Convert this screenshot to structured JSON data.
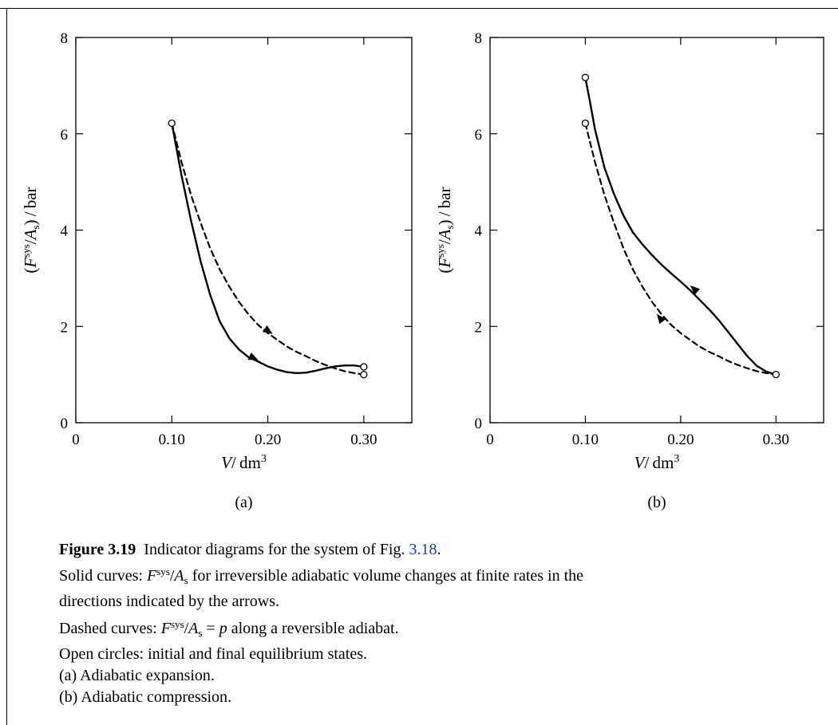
{
  "chart_data": [
    {
      "type": "line",
      "label": "(a)",
      "xlabel_var": "V",
      "xlabel_unit": "dm",
      "xlabel_exp": "3",
      "ylabel_unit": "bar",
      "xlim": [
        0,
        0.35
      ],
      "ylim": [
        0,
        8
      ],
      "xticks": [
        0,
        0.1,
        0.2,
        0.3
      ],
      "xtick_labels": [
        "0",
        "0.10",
        "0.20",
        "0.30"
      ],
      "yticks": [
        0,
        2,
        4,
        6,
        8
      ],
      "ytick_labels": [
        "0",
        "2",
        "4",
        "6",
        "8"
      ],
      "series": [
        {
          "style": "solid",
          "arrows": [
            [
              0.19,
              1.3,
              1
            ]
          ],
          "points": [
            [
              0.1,
              6.22
            ],
            [
              0.11,
              5.15
            ],
            [
              0.12,
              4.2
            ],
            [
              0.13,
              3.35
            ],
            [
              0.14,
              2.65
            ],
            [
              0.15,
              2.1
            ],
            [
              0.16,
              1.75
            ],
            [
              0.17,
              1.52
            ],
            [
              0.18,
              1.36
            ],
            [
              0.19,
              1.27
            ],
            [
              0.2,
              1.17
            ],
            [
              0.21,
              1.1
            ],
            [
              0.22,
              1.05
            ],
            [
              0.23,
              1.03
            ],
            [
              0.24,
              1.04
            ],
            [
              0.25,
              1.08
            ],
            [
              0.26,
              1.13
            ],
            [
              0.27,
              1.17
            ],
            [
              0.28,
              1.19
            ],
            [
              0.29,
              1.19
            ],
            [
              0.3,
              1.16
            ]
          ]
        },
        {
          "style": "dashed",
          "arrows": [
            [
              0.205,
              1.84,
              1
            ]
          ],
          "points": [
            [
              0.1,
              6.22
            ],
            [
              0.11,
              5.42
            ],
            [
              0.12,
              4.73
            ],
            [
              0.13,
              4.15
            ],
            [
              0.14,
              3.62
            ],
            [
              0.15,
              3.18
            ],
            [
              0.16,
              2.82
            ],
            [
              0.17,
              2.51
            ],
            [
              0.18,
              2.25
            ],
            [
              0.19,
              2.03
            ],
            [
              0.2,
              1.86
            ],
            [
              0.21,
              1.72
            ],
            [
              0.22,
              1.58
            ],
            [
              0.23,
              1.47
            ],
            [
              0.24,
              1.38
            ],
            [
              0.25,
              1.28
            ],
            [
              0.26,
              1.2
            ],
            [
              0.27,
              1.13
            ],
            [
              0.28,
              1.07
            ],
            [
              0.29,
              1.03
            ],
            [
              0.3,
              1.0
            ]
          ]
        }
      ],
      "circles": [
        [
          0.1,
          6.22
        ],
        [
          0.3,
          1.16
        ],
        [
          0.3,
          1.0
        ]
      ]
    },
    {
      "type": "line",
      "label": "(b)",
      "xlabel_var": "V",
      "xlabel_unit": "dm",
      "xlabel_exp": "3",
      "ylabel_unit": "bar",
      "xlim": [
        0,
        0.35
      ],
      "ylim": [
        0,
        8
      ],
      "xticks": [
        0,
        0.1,
        0.2,
        0.3
      ],
      "xtick_labels": [
        "0",
        "0.10",
        "0.20",
        "0.30"
      ],
      "yticks": [
        0,
        2,
        4,
        6,
        8
      ],
      "ytick_labels": [
        "0",
        "2",
        "4",
        "6",
        "8"
      ],
      "series": [
        {
          "style": "solid",
          "arrows": [
            [
              0.21,
              2.85,
              -1
            ]
          ],
          "points": [
            [
              0.1,
              7.17
            ],
            [
              0.105,
              6.65
            ],
            [
              0.11,
              6.1
            ],
            [
              0.12,
              5.3
            ],
            [
              0.13,
              4.75
            ],
            [
              0.14,
              4.3
            ],
            [
              0.15,
              3.95
            ],
            [
              0.16,
              3.7
            ],
            [
              0.17,
              3.48
            ],
            [
              0.18,
              3.28
            ],
            [
              0.19,
              3.1
            ],
            [
              0.2,
              2.93
            ],
            [
              0.21,
              2.75
            ],
            [
              0.22,
              2.55
            ],
            [
              0.23,
              2.35
            ],
            [
              0.24,
              2.13
            ],
            [
              0.25,
              1.88
            ],
            [
              0.26,
              1.63
            ],
            [
              0.27,
              1.38
            ],
            [
              0.28,
              1.18
            ],
            [
              0.29,
              1.06
            ],
            [
              0.3,
              1.0
            ]
          ]
        },
        {
          "style": "dashed",
          "arrows": [
            [
              0.175,
              2.26,
              -1
            ]
          ],
          "points": [
            [
              0.1,
              6.22
            ],
            [
              0.11,
              5.42
            ],
            [
              0.12,
              4.73
            ],
            [
              0.13,
              4.15
            ],
            [
              0.14,
              3.62
            ],
            [
              0.15,
              3.18
            ],
            [
              0.16,
              2.82
            ],
            [
              0.17,
              2.51
            ],
            [
              0.18,
              2.25
            ],
            [
              0.19,
              2.03
            ],
            [
              0.2,
              1.86
            ],
            [
              0.21,
              1.72
            ],
            [
              0.22,
              1.58
            ],
            [
              0.23,
              1.47
            ],
            [
              0.24,
              1.38
            ],
            [
              0.25,
              1.28
            ],
            [
              0.26,
              1.2
            ],
            [
              0.27,
              1.13
            ],
            [
              0.28,
              1.07
            ],
            [
              0.29,
              1.03
            ],
            [
              0.3,
              1.0
            ]
          ]
        }
      ],
      "circles": [
        [
          0.1,
          7.17
        ],
        [
          0.1,
          6.22
        ],
        [
          0.3,
          1.0
        ]
      ]
    }
  ],
  "caption": {
    "figure_label": "Figure 3.19",
    "title_text": "Indicator diagrams for the system of Fig.",
    "ref": "3.18",
    "line2": " for irreversible adiabatic volume changes at finite rates in the",
    "line3": "directions indicated by the arrows.",
    "line4a": "Dashed curves: ",
    "line4b": " along a reversible adiabat.",
    "line5": "Open circles: initial and final equilibrium states.",
    "line6": "(a) Adiabatic expansion.",
    "line7": "(b) Adiabatic compression.",
    "solid_label": "Solid curves: ",
    "sym_F": "F",
    "sym_sys": "sys",
    "sym_A": "A",
    "sym_s": "s",
    "sym_p": "p"
  }
}
